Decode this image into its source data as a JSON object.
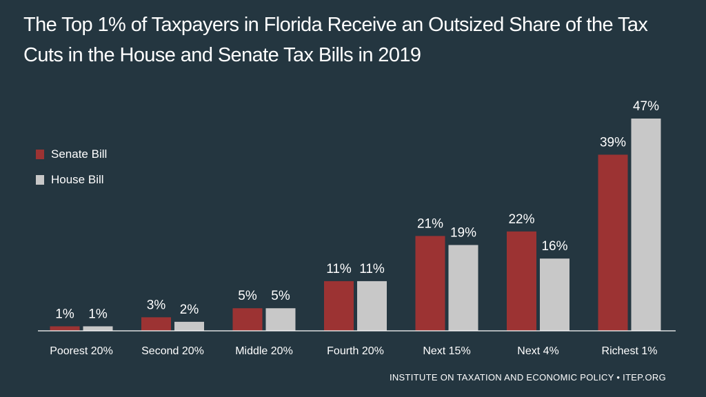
{
  "chart_data": {
    "type": "bar",
    "title": "The Top 1% of Taxpayers in Florida Receive an Outsized Share of the Tax Cuts in the House and Senate Tax Bills in 2019",
    "categories": [
      "Poorest 20%",
      "Second 20%",
      "Middle 20%",
      "Fourth 20%",
      "Next 15%",
      "Next 4%",
      "Richest 1%"
    ],
    "series": [
      {
        "name": "Senate Bill",
        "color": "#9c3333",
        "values": [
          1,
          3,
          5,
          11,
          21,
          22,
          39
        ],
        "labels": [
          "1%",
          "3%",
          "5%",
          "11%",
          "21%",
          "22%",
          "39%"
        ]
      },
      {
        "name": "House Bill",
        "color": "#c8c8c8",
        "values": [
          1,
          2,
          5,
          11,
          19,
          16,
          47
        ],
        "labels": [
          "1%",
          "2%",
          "5%",
          "11%",
          "19%",
          "16%",
          "47%"
        ]
      }
    ],
    "ylim": [
      0,
      50
    ],
    "xlabel": "",
    "ylabel": "",
    "legend": "top-left",
    "grid": false
  },
  "source": "INSTITUTE ON TAXATION AND ECONOMIC POLICY • ITEP.ORG"
}
